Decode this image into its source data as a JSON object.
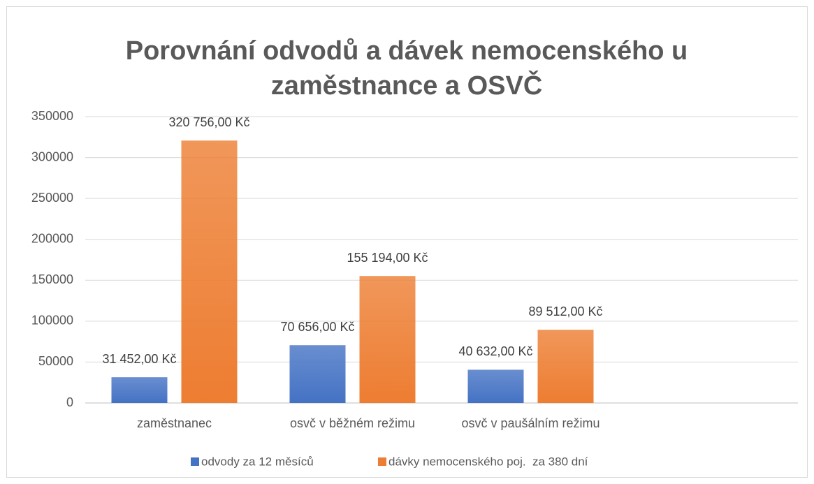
{
  "chart_data": {
    "type": "bar",
    "title": [
      "Porovnání odvodů a dávek nemocenského u",
      "zaměstnance a OSVČ"
    ],
    "categories": [
      "zaměstnanec",
      "osvč v běžném režimu",
      "osvč v paušálním režimu",
      null
    ],
    "series": [
      {
        "name": "odvody za 12 měsíců",
        "color": "#4472c4",
        "values": [
          31452,
          70656,
          40632,
          null
        ],
        "value_labels": [
          "31 452,00 Kč",
          "70 656,00 Kč",
          "40 632,00 Kč",
          null
        ]
      },
      {
        "name": "dávky nemocenského poj.  za 380 dní",
        "color": "#ed7d31",
        "values": [
          320756,
          155194,
          89512,
          null
        ],
        "value_labels": [
          "320 756,00 Kč",
          "155 194,00 Kč",
          "89 512,00 Kč",
          null
        ]
      }
    ],
    "ylim": [
      0,
      350000
    ],
    "yticks": [
      0,
      50000,
      100000,
      150000,
      200000,
      250000,
      300000,
      350000
    ],
    "grid": true,
    "legend": "bottom"
  }
}
